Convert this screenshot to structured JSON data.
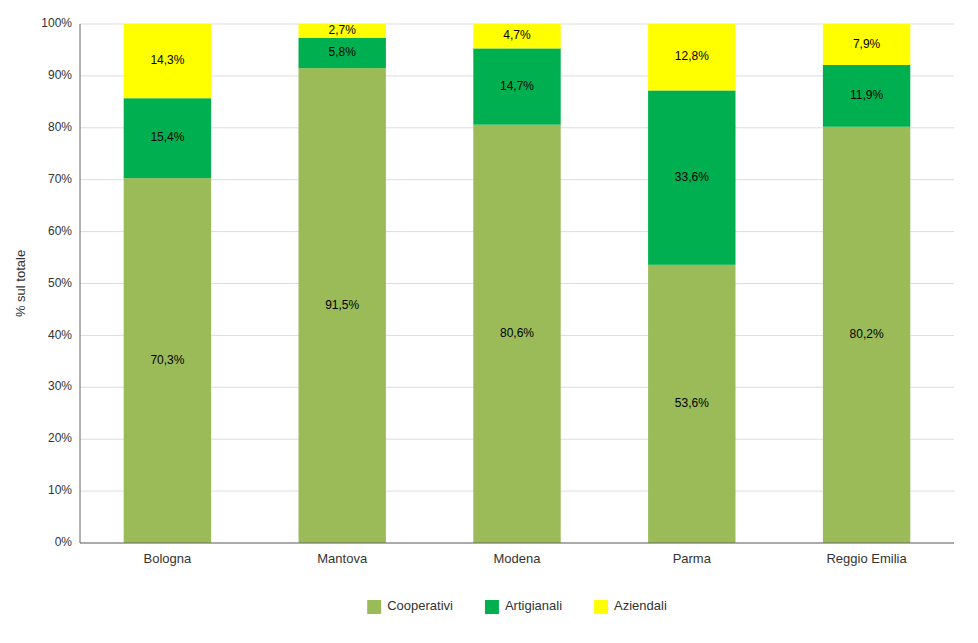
{
  "chart_data": {
    "type": "bar",
    "stacked": true,
    "data_labels": true,
    "grid": true,
    "legend": "bottom",
    "y_label": "% sul totale",
    "categories": [
      "Bologna",
      "Mantova",
      "Modena",
      "Parma",
      "Reggio Emilia"
    ],
    "series": [
      {
        "name": "Cooperativi",
        "color": "#9BBB59",
        "values": [
          70.3,
          91.5,
          80.6,
          53.6,
          80.2
        ],
        "value_labels": [
          "70,3%",
          "91,5%",
          "80,6%",
          "53,6%",
          "80,2%"
        ]
      },
      {
        "name": "Artigianali",
        "color": "#00B050",
        "values": [
          15.4,
          5.8,
          14.7,
          33.6,
          11.9
        ],
        "value_labels": [
          "15,4%",
          "5,8%",
          "14,7%",
          "33,6%",
          "11,9%"
        ]
      },
      {
        "name": "Aziendali",
        "color": "#FFFF00",
        "values": [
          14.3,
          2.7,
          4.7,
          12.8,
          7.9
        ],
        "value_labels": [
          "14,3%",
          "2,7%",
          "4,7%",
          "12,8%",
          "7,9%"
        ]
      }
    ],
    "ylim": [
      0,
      100
    ],
    "yticks": [
      {
        "value": 0,
        "label": "0%"
      },
      {
        "value": 10,
        "label": "10%"
      },
      {
        "value": 20,
        "label": "20%"
      },
      {
        "value": 30,
        "label": "30%"
      },
      {
        "value": 40,
        "label": "40%"
      },
      {
        "value": 50,
        "label": "50%"
      },
      {
        "value": 60,
        "label": "60%"
      },
      {
        "value": 70,
        "label": "70%"
      },
      {
        "value": 80,
        "label": "80%"
      },
      {
        "value": 90,
        "label": "90%"
      },
      {
        "value": 100,
        "label": "100%"
      }
    ]
  }
}
